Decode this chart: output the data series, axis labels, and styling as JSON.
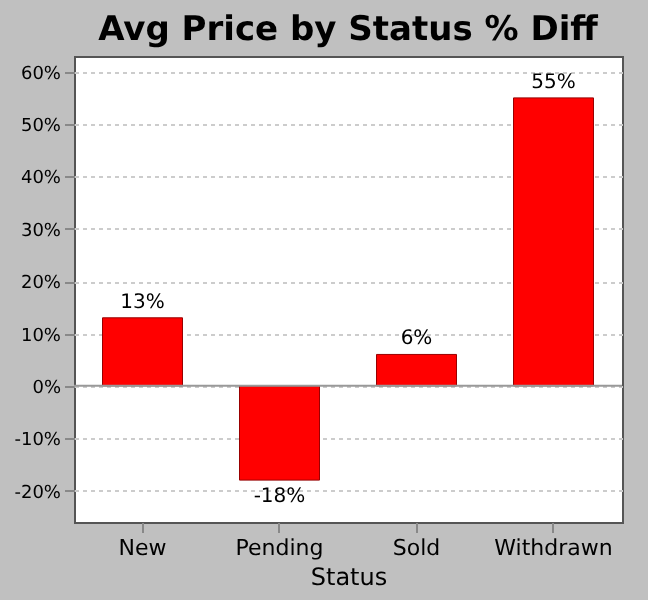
{
  "chart_data": {
    "type": "bar",
    "title": "Avg Price by Status % Diff",
    "xlabel": "Status",
    "categories": [
      "New",
      "Pending",
      "Sold",
      "Withdrawn"
    ],
    "series": [
      {
        "color": "#ff0000",
        "values": [
          13,
          -18,
          6,
          55
        ],
        "value_labels": [
          "13%",
          "-18%",
          "6%",
          "55%"
        ]
      }
    ],
    "ylim": [
      -26,
      63
    ],
    "yticks": [
      {
        "value": -20,
        "label": "-20%"
      },
      {
        "value": -10,
        "label": "-10%"
      },
      {
        "value": 0,
        "label": "0%"
      },
      {
        "value": 10,
        "label": "10%"
      },
      {
        "value": 20,
        "label": "20%"
      },
      {
        "value": 30,
        "label": "30%"
      },
      {
        "value": 40,
        "label": "40%"
      },
      {
        "value": 50,
        "label": "50%"
      },
      {
        "value": 60,
        "label": "60%"
      }
    ],
    "grid": "y",
    "legend": false
  }
}
